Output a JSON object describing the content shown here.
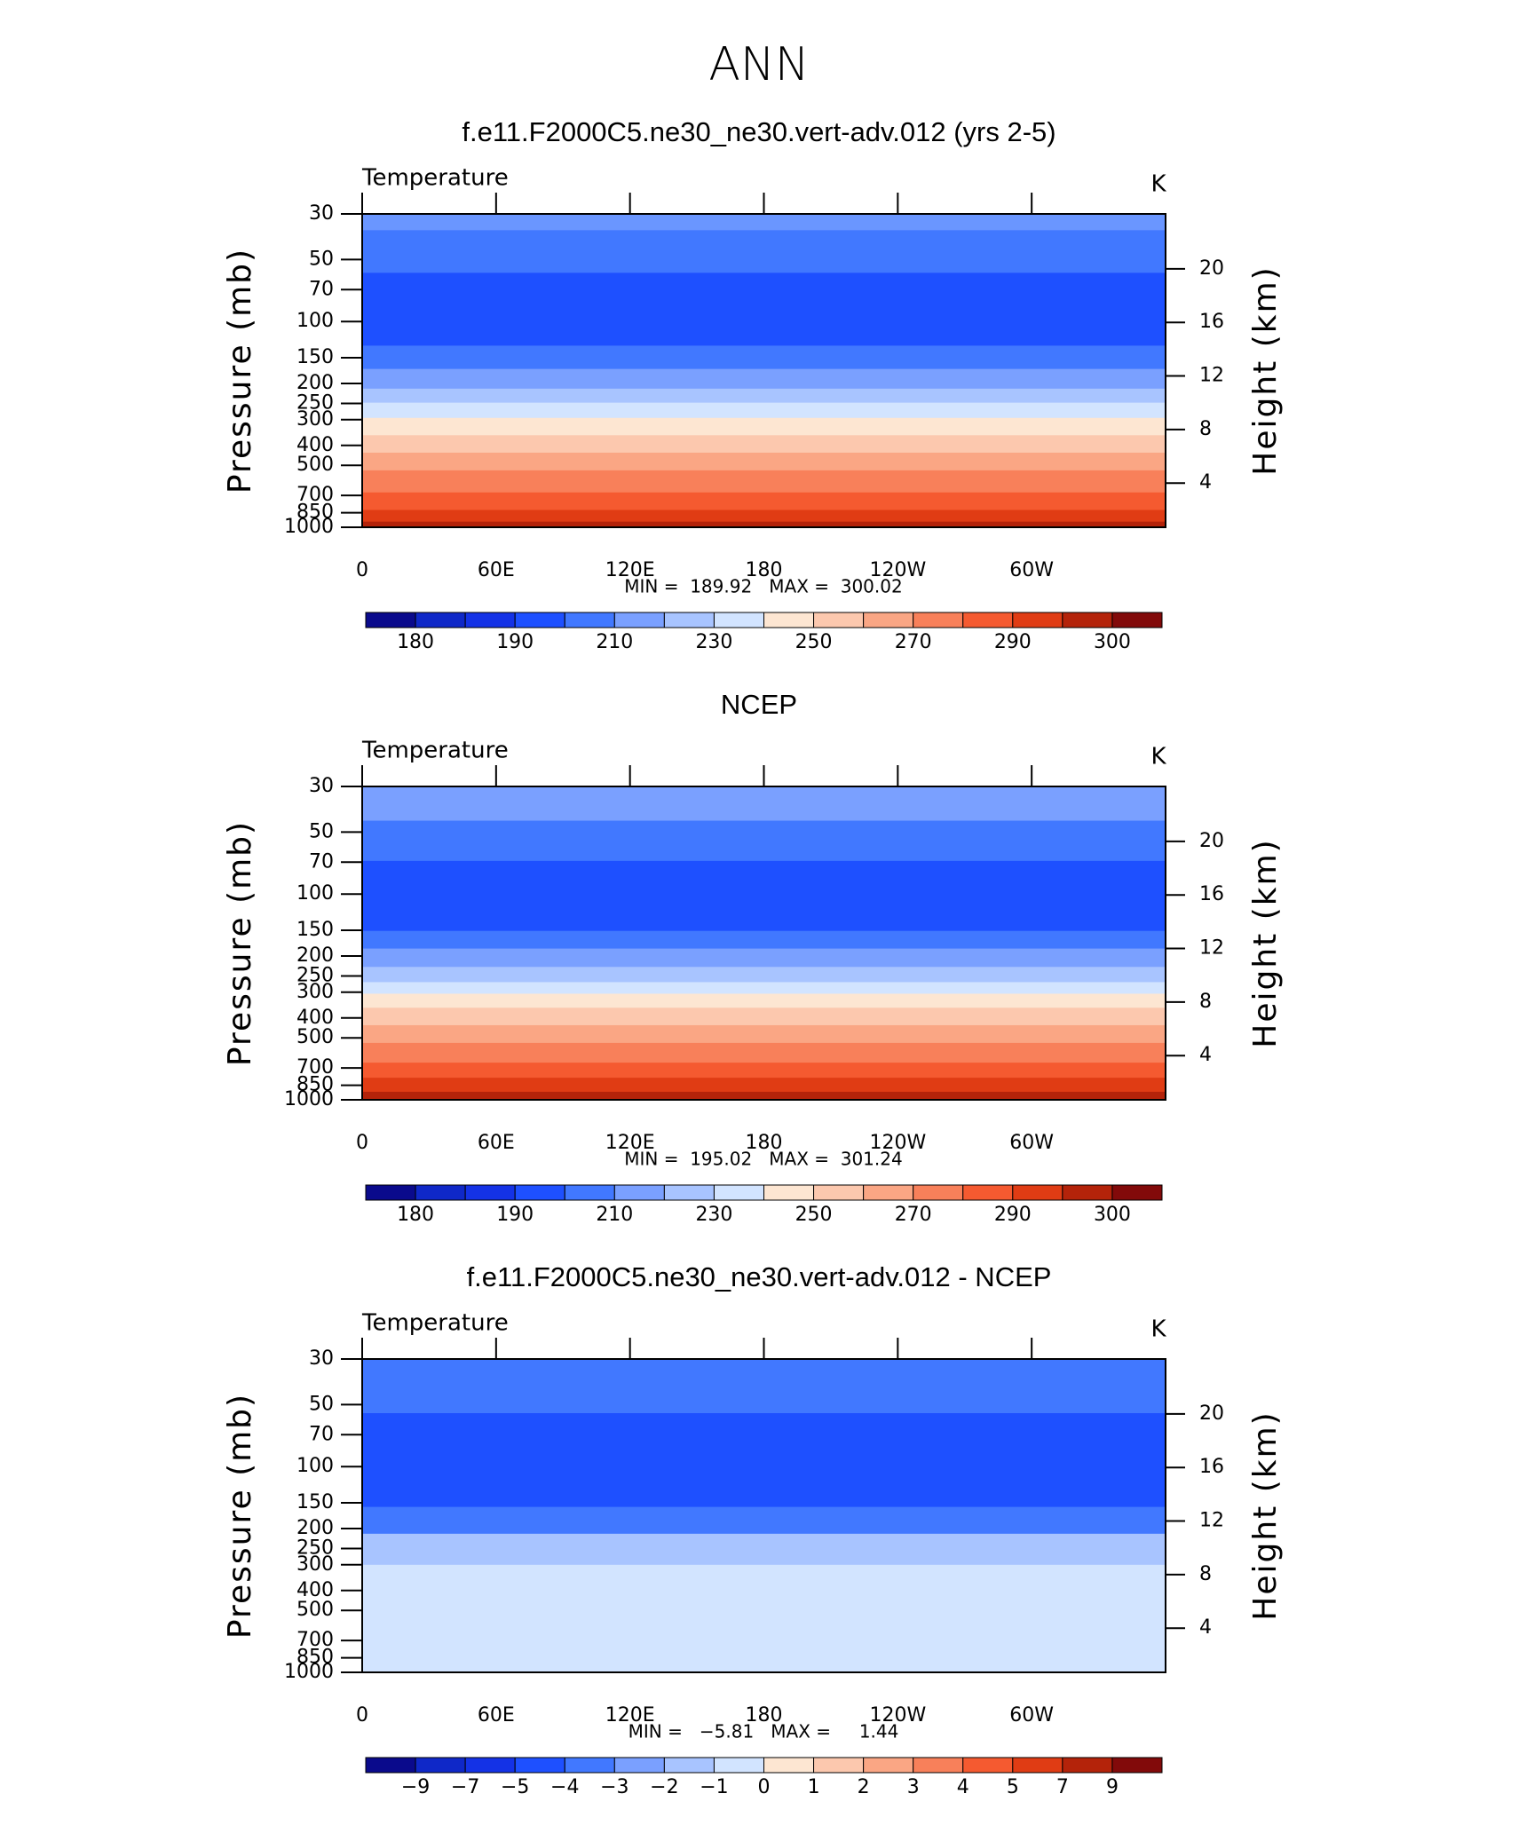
{
  "title": "ANN",
  "chart_data": [
    {
      "type": "contour",
      "title": "f.e11.F2000C5.ne30_ne30.vert-adv.012 (yrs 2-5)",
      "label": "Temperature",
      "units": "K",
      "ylabel": "Pressure (mb)",
      "y2label": "Height (km)",
      "log_y": true,
      "ylim": [
        30,
        1000
      ],
      "yticks": [
        30,
        50,
        70,
        100,
        150,
        200,
        250,
        300,
        400,
        500,
        700,
        850,
        1000
      ],
      "y2lim": [
        0.7,
        24.1
      ],
      "y2ticks": [
        20,
        16,
        12,
        8,
        4
      ],
      "xlim": [
        0,
        360
      ],
      "xticks": [
        0,
        {
          "value": 60,
          "label": "60E"
        },
        {
          "value": 120,
          "label": "120E"
        },
        180,
        {
          "value": 240,
          "label": "120W"
        },
        {
          "value": 300,
          "label": "60W"
        }
      ],
      "stats": "MIN =  189.92   MAX =  300.02",
      "bands": [
        {
          "from": 30,
          "to": 36,
          "color": "#6a96ff"
        },
        {
          "from": 36,
          "to": 58,
          "color": "#4178ff"
        },
        {
          "from": 58,
          "to": 131,
          "color": "#1e50ff"
        },
        {
          "from": 131,
          "to": 170,
          "color": "#4178ff"
        },
        {
          "from": 170,
          "to": 212,
          "color": "#7aa0ff"
        },
        {
          "from": 212,
          "to": 248,
          "color": "#a8c4ff"
        },
        {
          "from": 248,
          "to": 294,
          "color": "#d2e4ff"
        },
        {
          "from": 294,
          "to": 357,
          "color": "#fde6d2"
        },
        {
          "from": 357,
          "to": 434,
          "color": "#fcc8ae"
        },
        {
          "from": 434,
          "to": 529,
          "color": "#faa684"
        },
        {
          "from": 529,
          "to": 677,
          "color": "#f8805a"
        },
        {
          "from": 677,
          "to": 824,
          "color": "#f55a30"
        },
        {
          "from": 824,
          "to": 939,
          "color": "#e03c14"
        },
        {
          "from": 939,
          "to": 1000,
          "color": "#b4230a"
        }
      ],
      "colorbar": {
        "colors": [
          "#0a0a8c",
          "#0f28c8",
          "#1432e6",
          "#1e50ff",
          "#4178ff",
          "#7aa0ff",
          "#a8c4ff",
          "#d2e4ff",
          "#fde6d2",
          "#fcc8ae",
          "#faa684",
          "#f8805a",
          "#f55a30",
          "#e03c14",
          "#b4230a",
          "#820a0a"
        ],
        "labels": [
          180,
          190,
          210,
          230,
          250,
          270,
          290,
          300
        ]
      }
    },
    {
      "type": "contour",
      "title": "NCEP",
      "label": "Temperature",
      "units": "K",
      "ylabel": "Pressure (mb)",
      "y2label": "Height (km)",
      "log_y": true,
      "ylim": [
        30,
        1000
      ],
      "yticks": [
        30,
        50,
        70,
        100,
        150,
        200,
        250,
        300,
        400,
        500,
        700,
        850,
        1000
      ],
      "y2lim": [
        0.7,
        24.1
      ],
      "y2ticks": [
        20,
        16,
        12,
        8,
        4
      ],
      "xlim": [
        0,
        360
      ],
      "xticks": [
        0,
        {
          "value": 60,
          "label": "60E"
        },
        {
          "value": 120,
          "label": "120E"
        },
        180,
        {
          "value": 240,
          "label": "120W"
        },
        {
          "value": 300,
          "label": "60W"
        }
      ],
      "stats": "MIN =  195.02   MAX =  301.24",
      "bands": [
        {
          "from": 30,
          "to": 44,
          "color": "#7aa0ff"
        },
        {
          "from": 44,
          "to": 69,
          "color": "#4178ff"
        },
        {
          "from": 69,
          "to": 151,
          "color": "#1e50ff"
        },
        {
          "from": 151,
          "to": 184,
          "color": "#4178ff"
        },
        {
          "from": 184,
          "to": 226,
          "color": "#7aa0ff"
        },
        {
          "from": 226,
          "to": 268,
          "color": "#a8c4ff"
        },
        {
          "from": 268,
          "to": 305,
          "color": "#d2e4ff"
        },
        {
          "from": 305,
          "to": 357,
          "color": "#fde6d2"
        },
        {
          "from": 357,
          "to": 434,
          "color": "#fcc8ae"
        },
        {
          "from": 434,
          "to": 529,
          "color": "#faa684"
        },
        {
          "from": 529,
          "to": 660,
          "color": "#f8805a"
        },
        {
          "from": 660,
          "to": 781,
          "color": "#f55a30"
        },
        {
          "from": 781,
          "to": 914,
          "color": "#e03c14"
        },
        {
          "from": 914,
          "to": 1000,
          "color": "#b4230a"
        }
      ],
      "colorbar": {
        "colors": [
          "#0a0a8c",
          "#0f28c8",
          "#1432e6",
          "#1e50ff",
          "#4178ff",
          "#7aa0ff",
          "#a8c4ff",
          "#d2e4ff",
          "#fde6d2",
          "#fcc8ae",
          "#faa684",
          "#f8805a",
          "#f55a30",
          "#e03c14",
          "#b4230a",
          "#820a0a"
        ],
        "labels": [
          180,
          190,
          210,
          230,
          250,
          270,
          290,
          300
        ]
      }
    },
    {
      "type": "contour",
      "title": "f.e11.F2000C5.ne30_ne30.vert-adv.012 - NCEP",
      "label": "Temperature",
      "units": "K",
      "ylabel": "Pressure (mb)",
      "y2label": "Height (km)",
      "log_y": true,
      "ylim": [
        30,
        1000
      ],
      "yticks": [
        30,
        50,
        70,
        100,
        150,
        200,
        250,
        300,
        400,
        500,
        700,
        850,
        1000
      ],
      "y2lim": [
        0.7,
        24.1
      ],
      "y2ticks": [
        20,
        16,
        12,
        8,
        4
      ],
      "xlim": [
        0,
        360
      ],
      "xticks": [
        0,
        {
          "value": 60,
          "label": "60E"
        },
        {
          "value": 120,
          "label": "120E"
        },
        180,
        {
          "value": 240,
          "label": "120W"
        },
        {
          "value": 300,
          "label": "60W"
        }
      ],
      "stats": "MIN =   −5.81   MAX =     1.44",
      "bands": [
        {
          "from": 30,
          "to": 55,
          "color": "#4178ff"
        },
        {
          "from": 55,
          "to": 157,
          "color": "#1e50ff"
        },
        {
          "from": 157,
          "to": 212,
          "color": "#4178ff"
        },
        {
          "from": 212,
          "to": 300,
          "color": "#a8c4ff"
        },
        {
          "from": 300,
          "to": 1000,
          "color": "#d2e4ff"
        }
      ],
      "colorbar": {
        "colors": [
          "#0a0a8c",
          "#0f28c8",
          "#1432e6",
          "#1e50ff",
          "#4178ff",
          "#7aa0ff",
          "#a8c4ff",
          "#d2e4ff",
          "#fde6d2",
          "#fcc8ae",
          "#faa684",
          "#f8805a",
          "#f55a30",
          "#e03c14",
          "#b4230a",
          "#820a0a"
        ],
        "labels": [
          {
            "value": -9,
            "label": "−9"
          },
          {
            "value": -7,
            "label": "−7"
          },
          {
            "value": -5,
            "label": "−5"
          },
          {
            "value": -4,
            "label": "−4"
          },
          {
            "value": -3,
            "label": "−3"
          },
          {
            "value": -2,
            "label": "−2"
          },
          {
            "value": -1,
            "label": "−1"
          },
          0,
          1,
          2,
          3,
          4,
          5,
          7,
          9
        ]
      }
    }
  ]
}
